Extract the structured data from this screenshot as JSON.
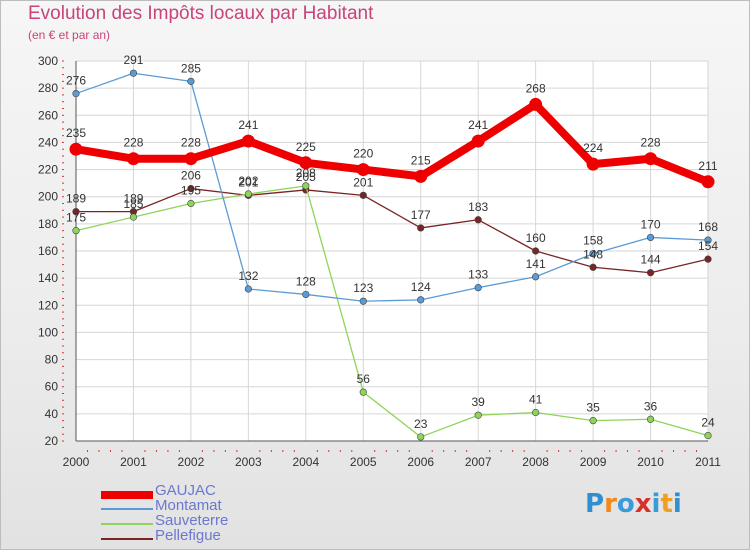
{
  "title": "Evolution des Impôts locaux par Habitant",
  "subtitle": "(en € et par an)",
  "logo_text": "Proxiti",
  "chart_data": {
    "type": "line",
    "title": "Evolution des Impôts locaux par Habitant",
    "subtitle": "(en € et par an)",
    "xlabel": "",
    "ylabel": "",
    "x": [
      "2000",
      "2001",
      "2002",
      "2003",
      "2004",
      "2005",
      "2006",
      "2007",
      "2008",
      "2009",
      "2010",
      "2011"
    ],
    "ylim": [
      20,
      300
    ],
    "yticks": [
      20,
      40,
      60,
      80,
      100,
      120,
      140,
      160,
      180,
      200,
      220,
      240,
      260,
      280,
      300
    ],
    "grid": true,
    "legend_position": "bottom-left",
    "series": [
      {
        "name": "GAUJAC",
        "color": "#ee0000",
        "values": [
          235,
          228,
          228,
          241,
          225,
          220,
          215,
          241,
          268,
          224,
          228,
          211
        ]
      },
      {
        "name": "Montamat",
        "color": "#5b9bd5",
        "values": [
          276,
          291,
          285,
          132,
          128,
          123,
          124,
          133,
          141,
          158,
          170,
          168
        ]
      },
      {
        "name": "Sauveterre",
        "color": "#8fd45a",
        "values": [
          175,
          185,
          195,
          202,
          208,
          56,
          23,
          39,
          41,
          35,
          36,
          24
        ]
      },
      {
        "name": "Pellefigue",
        "color": "#7a2525",
        "values": [
          189,
          189,
          206,
          201,
          205,
          201,
          177,
          183,
          160,
          148,
          144,
          154
        ]
      }
    ]
  }
}
